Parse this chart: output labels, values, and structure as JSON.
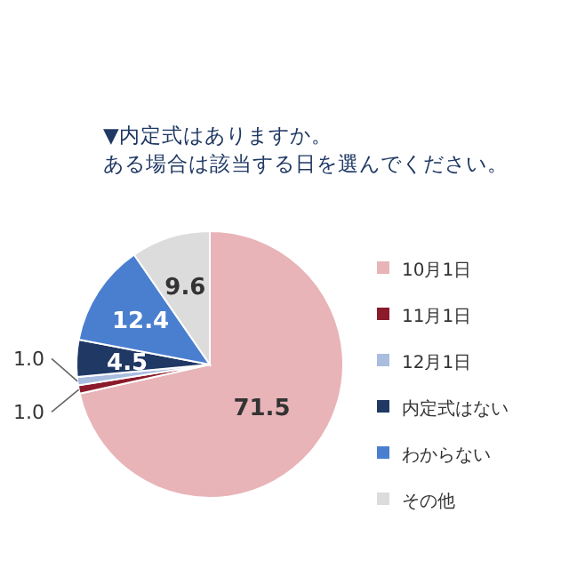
{
  "chart_data": {
    "type": "pie",
    "title": "▼内定式はありますか。",
    "subtitle": "ある場合は該当する日を選んでください。",
    "categories": [
      "10月1日",
      "11月1日",
      "12月1日",
      "内定式はない",
      "わからない",
      "その他"
    ],
    "values": [
      71.5,
      1.0,
      1.0,
      4.5,
      12.4,
      9.6
    ],
    "colors": [
      "#e8b4b8",
      "#8b1a2a",
      "#a9bde0",
      "#1f3864",
      "#4a7fd0",
      "#dcdcdc"
    ],
    "value_labels": [
      "71.5",
      "1.0",
      "1.0",
      "4.5",
      "12.4",
      "9.6"
    ],
    "legend": "right"
  }
}
